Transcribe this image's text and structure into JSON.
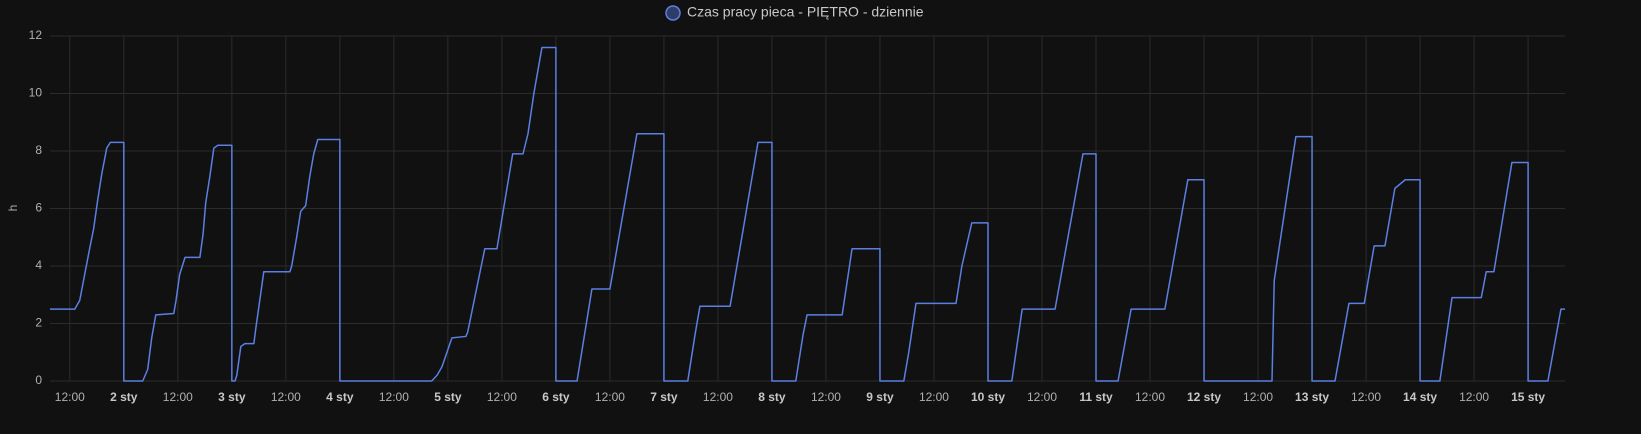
{
  "chart_data": {
    "type": "line",
    "y_label": "h",
    "xlim": [
      7.6,
      344.2
    ],
    "ylim": [
      0,
      12
    ],
    "yticks": [
      0,
      2,
      4,
      6,
      8,
      10,
      12
    ],
    "grid": true,
    "xticks": [
      {
        "value": 12,
        "label": "12:00"
      },
      {
        "value": 24,
        "label": "2 sty"
      },
      {
        "value": 36,
        "label": "12:00"
      },
      {
        "value": 48,
        "label": "3 sty"
      },
      {
        "value": 60,
        "label": "12:00"
      },
      {
        "value": 72,
        "label": "4 sty"
      },
      {
        "value": 84,
        "label": "12:00"
      },
      {
        "value": 96,
        "label": "5 sty"
      },
      {
        "value": 108,
        "label": "12:00"
      },
      {
        "value": 120,
        "label": "6 sty"
      },
      {
        "value": 132,
        "label": "12:00"
      },
      {
        "value": 144,
        "label": "7 sty"
      },
      {
        "value": 156,
        "label": "12:00"
      },
      {
        "value": 168,
        "label": "8 sty"
      },
      {
        "value": 180,
        "label": "12:00"
      },
      {
        "value": 192,
        "label": "9 sty"
      },
      {
        "value": 204,
        "label": "12:00"
      },
      {
        "value": 216,
        "label": "10 sty"
      },
      {
        "value": 228,
        "label": "12:00"
      },
      {
        "value": 240,
        "label": "11 sty"
      },
      {
        "value": 252,
        "label": "12:00"
      },
      {
        "value": 264,
        "label": "12 sty"
      },
      {
        "value": 276,
        "label": "12:00"
      },
      {
        "value": 288,
        "label": "13 sty"
      },
      {
        "value": 300,
        "label": "12:00"
      },
      {
        "value": 312,
        "label": "14 sty"
      },
      {
        "value": 324,
        "label": "12:00"
      },
      {
        "value": 336,
        "label": "15 sty"
      }
    ],
    "x": [
      7.6,
      13.1,
      14.2,
      15.3,
      16.4,
      17.3,
      18.2,
      19.1,
      20.2,
      21,
      24,
      24,
      28.2,
      29.3,
      30.2,
      31.1,
      35.1,
      35.6,
      36.4,
      37.6,
      40.9,
      41.6,
      42.2,
      43.1,
      44,
      44.9,
      48,
      48,
      48.7,
      49.1,
      50,
      50.9,
      52.9,
      53.3,
      54.2,
      55.1,
      60.9,
      61.3,
      62.4,
      63.3,
      64.4,
      65.3,
      66.2,
      67.1,
      72,
      72,
      92.4,
      93.6,
      94.7,
      95.8,
      96.9,
      100,
      100.4,
      104.2,
      106.9,
      110.4,
      112.7,
      113.8,
      115.1,
      116.9,
      120,
      120,
      124.7,
      128,
      132,
      138,
      144,
      144,
      149.3,
      150.9,
      152,
      158.7,
      164.9,
      168,
      168,
      173.3,
      174.9,
      175.8,
      183.6,
      185.8,
      192,
      192,
      197.3,
      198.4,
      200,
      208.9,
      210.2,
      212.4,
      216,
      216,
      221.3,
      223.6,
      230.9,
      237.1,
      240,
      240,
      244.9,
      247.8,
      255.3,
      260.4,
      264,
      264,
      279.1,
      279.6,
      284.4,
      288,
      288,
      293.1,
      296.2,
      299.6,
      301.8,
      304.2,
      306.4,
      308.7,
      312,
      312,
      316.4,
      319.1,
      325.6,
      326.7,
      328.4,
      332.4,
      336,
      336,
      340.4,
      343.3,
      344.2
    ],
    "series": [
      {
        "name": "Czas pracy pieca - PIĘTRO - dziennie",
        "color": "#5b7fe3",
        "values": [
          2.5,
          2.5,
          2.8,
          3.7,
          4.6,
          5.3,
          6.3,
          7.2,
          8.1,
          8.3,
          8.3,
          0,
          0,
          0.4,
          1.5,
          2.3,
          2.35,
          2.8,
          3.7,
          4.3,
          4.3,
          5.1,
          6.2,
          7.1,
          8.1,
          8.2,
          8.2,
          0,
          0,
          0.2,
          1.2,
          1.3,
          1.3,
          1.8,
          2.8,
          3.8,
          3.8,
          4.0,
          5.0,
          5.9,
          6.1,
          7.1,
          7.9,
          8.4,
          8.4,
          0,
          0,
          0.2,
          0.5,
          1.0,
          1.5,
          1.55,
          1.7,
          4.6,
          4.6,
          7.9,
          7.9,
          8.6,
          10,
          11.6,
          11.6,
          0,
          0,
          3.2,
          3.2,
          8.6,
          8.6,
          0,
          0,
          1.6,
          2.6,
          2.6,
          8.3,
          8.3,
          0,
          0,
          1.6,
          2.3,
          2.3,
          4.6,
          4.6,
          0,
          0,
          1.0,
          2.7,
          2.7,
          4.0,
          5.5,
          5.5,
          0,
          0,
          2.5,
          2.5,
          7.9,
          7.9,
          0,
          0,
          2.5,
          2.5,
          7.0,
          7.0,
          0,
          0,
          3.5,
          8.5,
          8.5,
          0,
          0,
          2.7,
          2.7,
          4.7,
          4.7,
          6.7,
          7.0,
          7.0,
          0,
          0,
          2.9,
          2.9,
          3.8,
          3.8,
          7.6,
          7.6,
          0,
          0,
          2.5,
          2.5
        ]
      }
    ]
  }
}
